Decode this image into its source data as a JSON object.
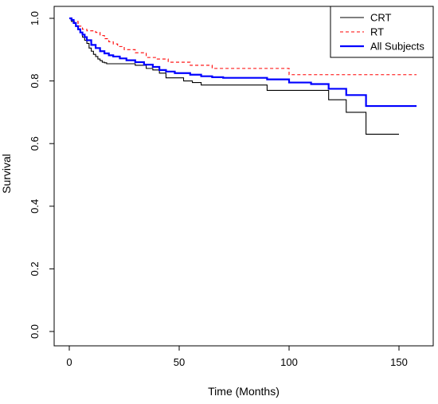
{
  "chart_data": {
    "type": "line",
    "title": "",
    "xlabel": "Time (Months)",
    "ylabel": "Survival",
    "xlim": [
      0,
      160
    ],
    "ylim": [
      0,
      1
    ],
    "x_ticks": [
      0,
      50,
      100,
      150
    ],
    "y_ticks": [
      0.0,
      0.2,
      0.4,
      0.6,
      0.8,
      1.0
    ],
    "x_tick_labels": [
      "0",
      "50",
      "100",
      "150"
    ],
    "y_tick_labels": [
      "0.0",
      "0.2",
      "0.4",
      "0.6",
      "0.8",
      "1.0"
    ],
    "grid": false,
    "legend_position": "top-right",
    "series": [
      {
        "name": "CRT",
        "color": "#000000",
        "line_style": "solid",
        "step": true,
        "x": [
          0,
          1,
          2,
          3,
          4,
          5,
          6,
          7,
          8,
          9,
          10,
          11,
          12,
          13,
          14,
          15,
          16,
          17,
          18,
          20,
          25,
          30,
          35,
          38,
          41,
          44,
          47,
          52,
          56,
          60,
          70,
          80,
          90,
          100,
          110,
          118,
          126,
          135,
          150
        ],
        "y": [
          1.0,
          0.99,
          0.985,
          0.975,
          0.965,
          0.955,
          0.94,
          0.93,
          0.92,
          0.905,
          0.895,
          0.885,
          0.878,
          0.87,
          0.865,
          0.86,
          0.858,
          0.855,
          0.855,
          0.855,
          0.855,
          0.85,
          0.84,
          0.835,
          0.825,
          0.81,
          0.81,
          0.8,
          0.795,
          0.787,
          0.787,
          0.787,
          0.77,
          0.77,
          0.77,
          0.74,
          0.7,
          0.63,
          0.63
        ]
      },
      {
        "name": "RT",
        "color": "#ff0000",
        "line_style": "dashed",
        "step": true,
        "x": [
          0,
          2,
          4,
          6,
          8,
          12,
          14,
          16,
          18,
          20,
          22,
          25,
          30,
          35,
          40,
          45,
          55,
          65,
          75,
          85,
          95,
          100,
          110,
          120,
          130,
          158
        ],
        "y": [
          1.0,
          0.99,
          0.975,
          0.965,
          0.96,
          0.955,
          0.945,
          0.935,
          0.925,
          0.918,
          0.91,
          0.9,
          0.89,
          0.875,
          0.87,
          0.86,
          0.85,
          0.84,
          0.84,
          0.84,
          0.84,
          0.82,
          0.82,
          0.82,
          0.82,
          0.82
        ]
      },
      {
        "name": "All Subjects",
        "color": "#0000ff",
        "line_style": "solid",
        "step": true,
        "x": [
          0,
          1,
          2,
          3,
          4,
          5,
          6,
          7,
          8,
          10,
          12,
          14,
          16,
          18,
          20,
          23,
          26,
          30,
          34,
          38,
          41,
          44,
          48,
          55,
          60,
          65,
          70,
          80,
          90,
          100,
          110,
          118,
          126,
          135,
          158
        ],
        "y": [
          1.0,
          0.995,
          0.985,
          0.975,
          0.965,
          0.955,
          0.948,
          0.94,
          0.93,
          0.915,
          0.905,
          0.895,
          0.888,
          0.882,
          0.878,
          0.872,
          0.866,
          0.86,
          0.852,
          0.845,
          0.835,
          0.83,
          0.825,
          0.82,
          0.815,
          0.812,
          0.81,
          0.81,
          0.805,
          0.795,
          0.79,
          0.775,
          0.755,
          0.72,
          0.72
        ]
      }
    ]
  }
}
